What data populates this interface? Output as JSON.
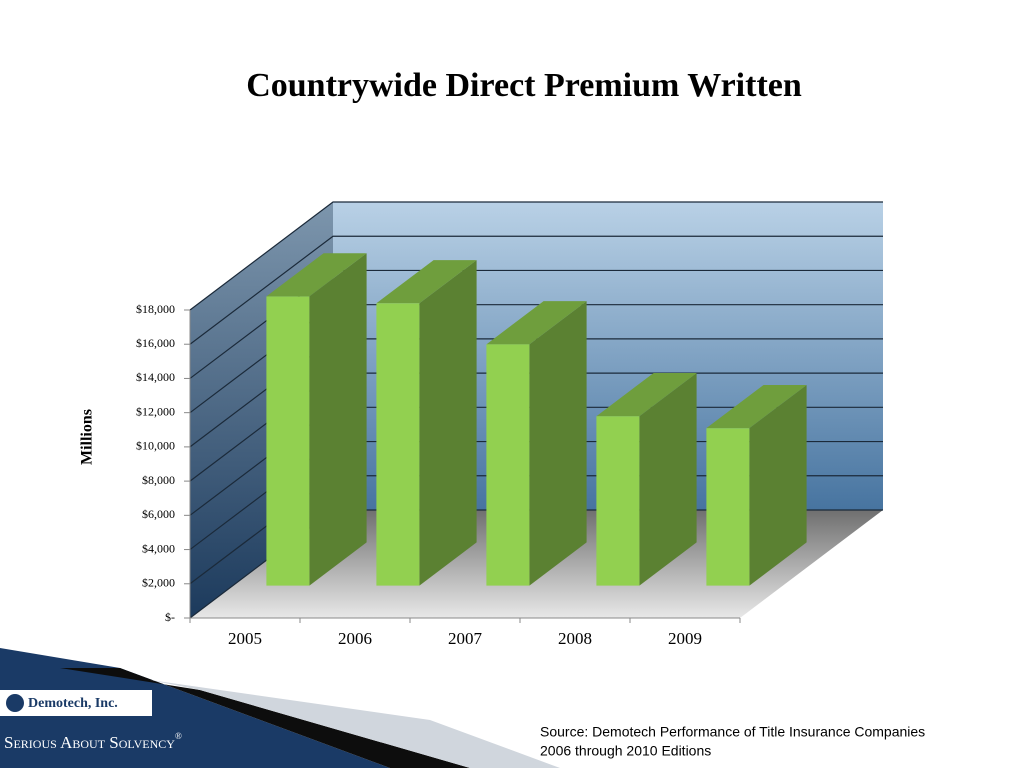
{
  "chart_data": {
    "type": "bar3d",
    "title": "Countrywide Direct Premium Written",
    "y_label": "Millions",
    "categories": [
      "2005",
      "2006",
      "2007",
      "2008",
      "2009"
    ],
    "values": [
      16900,
      16500,
      14100,
      9900,
      9200
    ],
    "color": "#92d050",
    "ylim": [
      0,
      18000
    ],
    "yticks": [
      {
        "value": 0,
        "label": "$-"
      },
      {
        "value": 2000,
        "label": "$2,000"
      },
      {
        "value": 4000,
        "label": "$4,000"
      },
      {
        "value": 6000,
        "label": "$6,000"
      },
      {
        "value": 8000,
        "label": "$8,000"
      },
      {
        "value": 10000,
        "label": "$10,000"
      },
      {
        "value": 12000,
        "label": "$12,000"
      },
      {
        "value": 14000,
        "label": "$14,000"
      },
      {
        "value": 16000,
        "label": "$16,000"
      },
      {
        "value": 18000,
        "label": "$18,000"
      }
    ],
    "grid": true
  },
  "footer": {
    "logo": "Demotech, Inc.",
    "tagline": "Serious About Solvency",
    "tagline_mark": "®",
    "source_lines": [
      "Source:  Demotech Performance of Title Insurance Companies",
      "2006 through 2010 Editions"
    ]
  }
}
